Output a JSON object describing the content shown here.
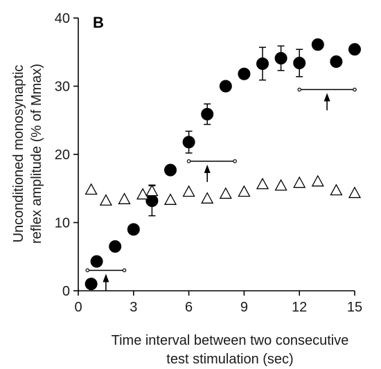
{
  "chart_data": {
    "type": "scatter",
    "panel_label": "B",
    "xlabel": [
      "Time interval between two consecutive",
      "test stimulation (sec)"
    ],
    "ylabel": [
      "Unconditioned monosynaptic",
      "reflex amplitude (% of Mmax)"
    ],
    "xlim": [
      0,
      15
    ],
    "ylim": [
      0,
      40
    ],
    "xticks": [
      0,
      3,
      6,
      9,
      12,
      15
    ],
    "yticks": [
      0,
      10,
      20,
      30,
      40
    ],
    "series": [
      {
        "marker": "filled-circle",
        "x": [
          0.7,
          1.0,
          2.0,
          3.0,
          4.0,
          5.0,
          6.0,
          7.0,
          8.0,
          9.0,
          10.0,
          11.0,
          12.0,
          13.0,
          14.0,
          15.0
        ],
        "y": [
          1.0,
          4.3,
          6.5,
          9.0,
          13.2,
          17.7,
          21.8,
          25.9,
          30.0,
          31.8,
          33.3,
          34.1,
          33.4,
          36.1,
          33.6,
          35.4
        ],
        "error": [
          0,
          0,
          0,
          0,
          2.2,
          0,
          1.6,
          1.5,
          0,
          0,
          2.4,
          1.8,
          2.0,
          0,
          0,
          0
        ]
      },
      {
        "marker": "open-triangle",
        "x": [
          0.7,
          1.5,
          2.5,
          3.5,
          4.0,
          5.0,
          6.0,
          7.0,
          8.0,
          9.0,
          10.0,
          11.0,
          12.0,
          13.0,
          14.0,
          15.0
        ],
        "y": [
          14.8,
          13.2,
          13.4,
          14.1,
          14.6,
          13.3,
          14.5,
          13.5,
          14.2,
          14.5,
          15.6,
          15.4,
          15.8,
          16.0,
          14.7,
          14.3
        ],
        "error": [
          0,
          0,
          0,
          0,
          0.9,
          0,
          0,
          0,
          0,
          0,
          0,
          0,
          0,
          0,
          0,
          0
        ]
      }
    ],
    "range_markers": [
      {
        "x_start": 0.5,
        "x_end": 2.5,
        "y": 3.0,
        "arrow_x": 1.5
      },
      {
        "x_start": 6.0,
        "x_end": 8.5,
        "y": 19.0,
        "arrow_x": 7.0
      },
      {
        "x_start": 12.0,
        "x_end": 15.0,
        "y": 29.5,
        "arrow_x": 13.5
      }
    ]
  }
}
